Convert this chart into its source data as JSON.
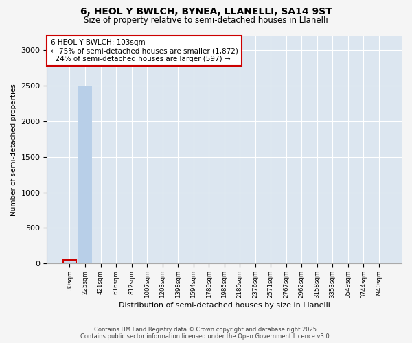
{
  "title": "6, HEOL Y BWLCH, BYNEA, LLANELLI, SA14 9ST",
  "subtitle": "Size of property relative to semi-detached houses in Llanelli",
  "xlabel": "Distribution of semi-detached houses by size in Llanelli",
  "ylabel": "Number of semi-detached properties",
  "bar_labels": [
    "30sqm",
    "225sqm",
    "421sqm",
    "616sqm",
    "812sqm",
    "1007sqm",
    "1203sqm",
    "1398sqm",
    "1594sqm",
    "1789sqm",
    "1985sqm",
    "2180sqm",
    "2376sqm",
    "2571sqm",
    "2767sqm",
    "2962sqm",
    "3158sqm",
    "3353sqm",
    "3549sqm",
    "3744sqm",
    "3940sqm"
  ],
  "bar_values": [
    50,
    2500,
    10,
    5,
    3,
    2,
    2,
    1,
    1,
    1,
    1,
    1,
    1,
    1,
    0,
    0,
    0,
    0,
    0,
    0,
    0
  ],
  "bar_color": "#b8cfe8",
  "highlight_bar_index": 0,
  "highlight_color": "#c8ddf0",
  "highlight_outline_color": "#cc0000",
  "annotation_text": "6 HEOL Y BWLCH: 103sqm\n← 75% of semi-detached houses are smaller (1,872)\n  24% of semi-detached houses are larger (597) →",
  "annotation_box_facecolor": "#ffffff",
  "annotation_outline_color": "#cc0000",
  "ylim": [
    0,
    3200
  ],
  "yticks": [
    0,
    500,
    1000,
    1500,
    2000,
    2500,
    3000
  ],
  "plot_bg_color": "#dce6f0",
  "fig_bg_color": "#f5f5f5",
  "grid_color": "#ffffff",
  "footer_line1": "Contains HM Land Registry data © Crown copyright and database right 2025.",
  "footer_line2": "Contains public sector information licensed under the Open Government Licence v3.0."
}
